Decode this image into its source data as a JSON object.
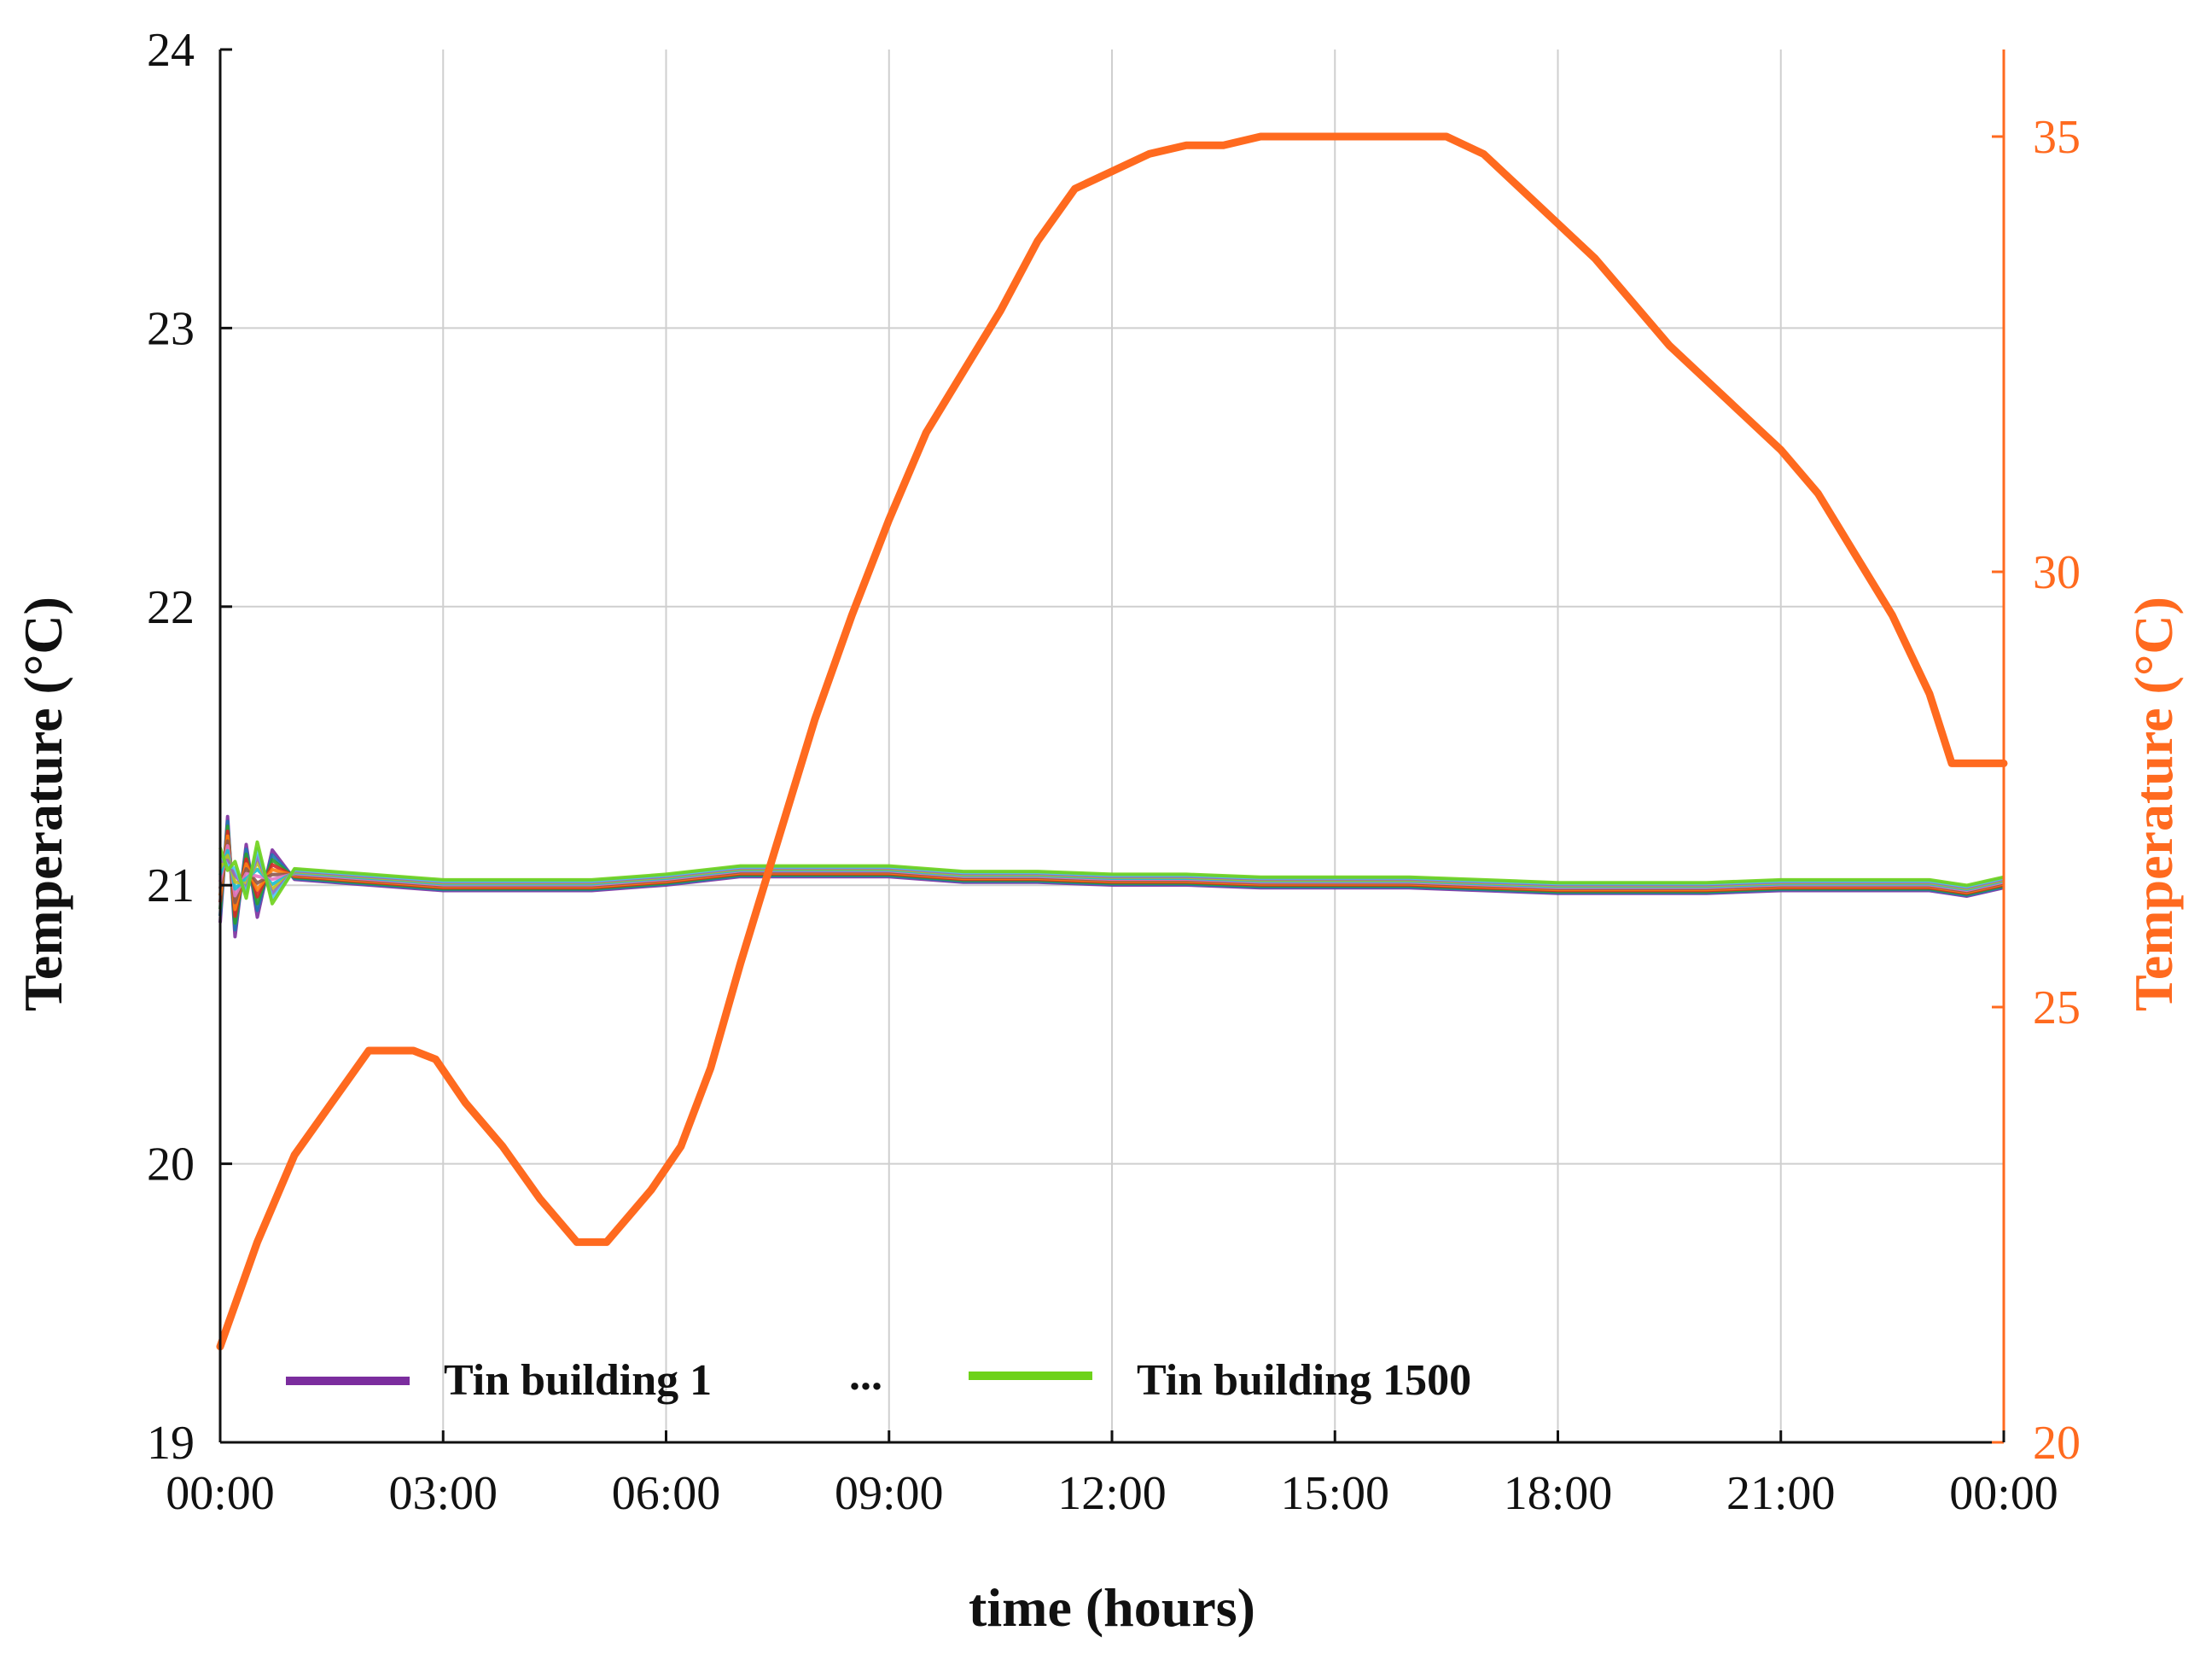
{
  "chart_data": {
    "type": "line",
    "x_ticks": [
      "00:00",
      "03:00",
      "06:00",
      "09:00",
      "12:00",
      "15:00",
      "18:00",
      "21:00",
      "00:00"
    ],
    "xlabel": "time (hours)",
    "xlim": [
      0,
      24
    ],
    "y_left": {
      "label": "Temperature (°C)",
      "lim": [
        19,
        24
      ],
      "ticks": [
        "19",
        "20",
        "21",
        "22",
        "23",
        "24"
      ]
    },
    "y_right": {
      "label": "Temperature (°C)",
      "lim": [
        20,
        36
      ],
      "ticks": [
        "20",
        "25",
        "30",
        "35"
      ],
      "color": "#ff6a1f"
    },
    "grid": true,
    "legend": {
      "placement": "bottom-left",
      "entries": [
        {
          "label": "Tin building 1",
          "color": "#7b2d9e"
        },
        {
          "label": "...",
          "color": "#111111"
        },
        {
          "label": "Tin building 1500",
          "color": "#6ed21a"
        }
      ]
    },
    "series": [
      {
        "axis": "right",
        "color": "#ff6a1f",
        "x": [
          0,
          0.5,
          1,
          1.5,
          2,
          2.3,
          2.6,
          2.9,
          3.3,
          3.8,
          4.3,
          4.8,
          5.2,
          5.5,
          5.8,
          6.2,
          6.6,
          7,
          7.5,
          8,
          8.5,
          9,
          9.5,
          10,
          10.5,
          11,
          11.5,
          12,
          12.5,
          13,
          13.5,
          14,
          14.5,
          15,
          15.5,
          16,
          16.5,
          17,
          17.5,
          18,
          18.5,
          19,
          19.5,
          20,
          20.5,
          21,
          21.5,
          22,
          22.5,
          23,
          23.3,
          23.6,
          24
        ],
        "y": [
          21.1,
          22.3,
          23.3,
          23.9,
          24.5,
          24.5,
          24.5,
          24.4,
          23.9,
          23.4,
          22.8,
          22.3,
          22.3,
          22.6,
          22.9,
          23.4,
          24.3,
          25.5,
          26.9,
          28.3,
          29.5,
          30.6,
          31.6,
          32.3,
          33,
          33.8,
          34.4,
          34.6,
          34.8,
          34.9,
          34.9,
          35,
          35,
          35,
          35,
          35,
          35,
          34.8,
          34.4,
          34,
          33.6,
          33.1,
          32.6,
          32.2,
          31.8,
          31.4,
          30.9,
          30.2,
          29.5,
          28.6,
          27.8,
          27.8,
          27.8
        ]
      }
    ],
    "ensemble": {
      "axis": "left",
      "first_label": "Tin building 1",
      "last_label": "Tin building 1500",
      "x": [
        0,
        0.1,
        0.2,
        0.35,
        0.5,
        0.7,
        1,
        2,
        3,
        4,
        5,
        6,
        7,
        8,
        9,
        10,
        11,
        12,
        13,
        14,
        15,
        16,
        17,
        18,
        19,
        20,
        21,
        22,
        23,
        23.5,
        24
      ],
      "y": [
        21,
        21.15,
        20.95,
        21.05,
        21.02,
        21.03,
        21.04,
        21.02,
        21,
        21,
        21,
        21.02,
        21.05,
        21.05,
        21.05,
        21.03,
        21.03,
        21.02,
        21.02,
        21.01,
        21.01,
        21.01,
        21,
        20.99,
        20.99,
        20.99,
        21,
        21,
        21,
        20.98,
        21.01
      ],
      "colors": [
        "#7b2d9e",
        "#1f77b4",
        "#2ca02c",
        "#d62728",
        "#ff7f0e",
        "#8c564b",
        "#e377c2",
        "#17becf",
        "#bcbd22",
        "#9467bd",
        "#4fc3f7",
        "#6ed21a"
      ]
    }
  }
}
